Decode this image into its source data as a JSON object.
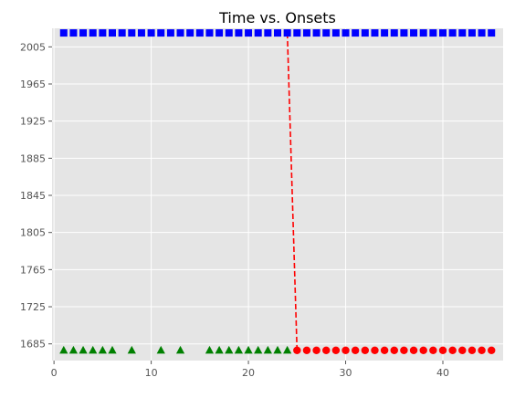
{
  "chart_data": {
    "type": "scatter",
    "title": "Time vs. Onsets",
    "xlabel": "",
    "ylabel": "",
    "xlim": [
      -0.2,
      46.2
    ],
    "ylim": [
      1667,
      2025
    ],
    "x_ticks": [
      0,
      10,
      20,
      30,
      40
    ],
    "y_ticks": [
      1685,
      1725,
      1765,
      1805,
      1845,
      1885,
      1925,
      1965,
      2005
    ],
    "grid": true,
    "background": "#e5e5e5",
    "series": [
      {
        "marker": "square",
        "color": "#0000ff",
        "x": [
          1,
          2,
          3,
          4,
          5,
          6,
          7,
          8,
          9,
          10,
          11,
          12,
          13,
          14,
          15,
          16,
          17,
          18,
          19,
          20,
          21,
          22,
          23,
          24,
          25,
          26,
          27,
          28,
          29,
          30,
          31,
          32,
          33,
          34,
          35,
          36,
          37,
          38,
          39,
          40,
          41,
          42,
          43,
          44,
          45
        ],
        "y": [
          2020,
          2020,
          2020,
          2020,
          2020,
          2020,
          2020,
          2020,
          2020,
          2020,
          2020,
          2020,
          2020,
          2020,
          2020,
          2020,
          2020,
          2020,
          2020,
          2020,
          2020,
          2020,
          2020,
          2020,
          2020,
          2020,
          2020,
          2020,
          2020,
          2020,
          2020,
          2020,
          2020,
          2020,
          2020,
          2020,
          2020,
          2020,
          2020,
          2020,
          2020,
          2020,
          2020,
          2020,
          2020
        ]
      },
      {
        "marker": "triangle",
        "color": "#008000",
        "x": [
          1,
          2,
          3,
          4,
          5,
          6,
          8,
          11,
          13,
          16,
          17,
          18,
          19,
          20,
          21,
          22,
          23,
          24
        ],
        "y": [
          1678,
          1678,
          1678,
          1678,
          1678,
          1678,
          1678,
          1678,
          1678,
          1678,
          1678,
          1678,
          1678,
          1678,
          1678,
          1678,
          1678,
          1678
        ]
      },
      {
        "marker": "circle",
        "color": "#ff0000",
        "x": [
          25,
          26,
          27,
          28,
          29,
          30,
          31,
          32,
          33,
          34,
          35,
          36,
          37,
          38,
          39,
          40,
          41,
          42,
          43,
          44,
          45
        ],
        "y": [
          1678,
          1678,
          1678,
          1678,
          1678,
          1678,
          1678,
          1678,
          1678,
          1678,
          1678,
          1678,
          1678,
          1678,
          1678,
          1678,
          1678,
          1678,
          1678,
          1678,
          1678
        ]
      }
    ],
    "reference_line": {
      "style": "dashed",
      "color": "#ff0000",
      "x": [
        24,
        25
      ],
      "y": [
        2020,
        1678
      ]
    }
  }
}
